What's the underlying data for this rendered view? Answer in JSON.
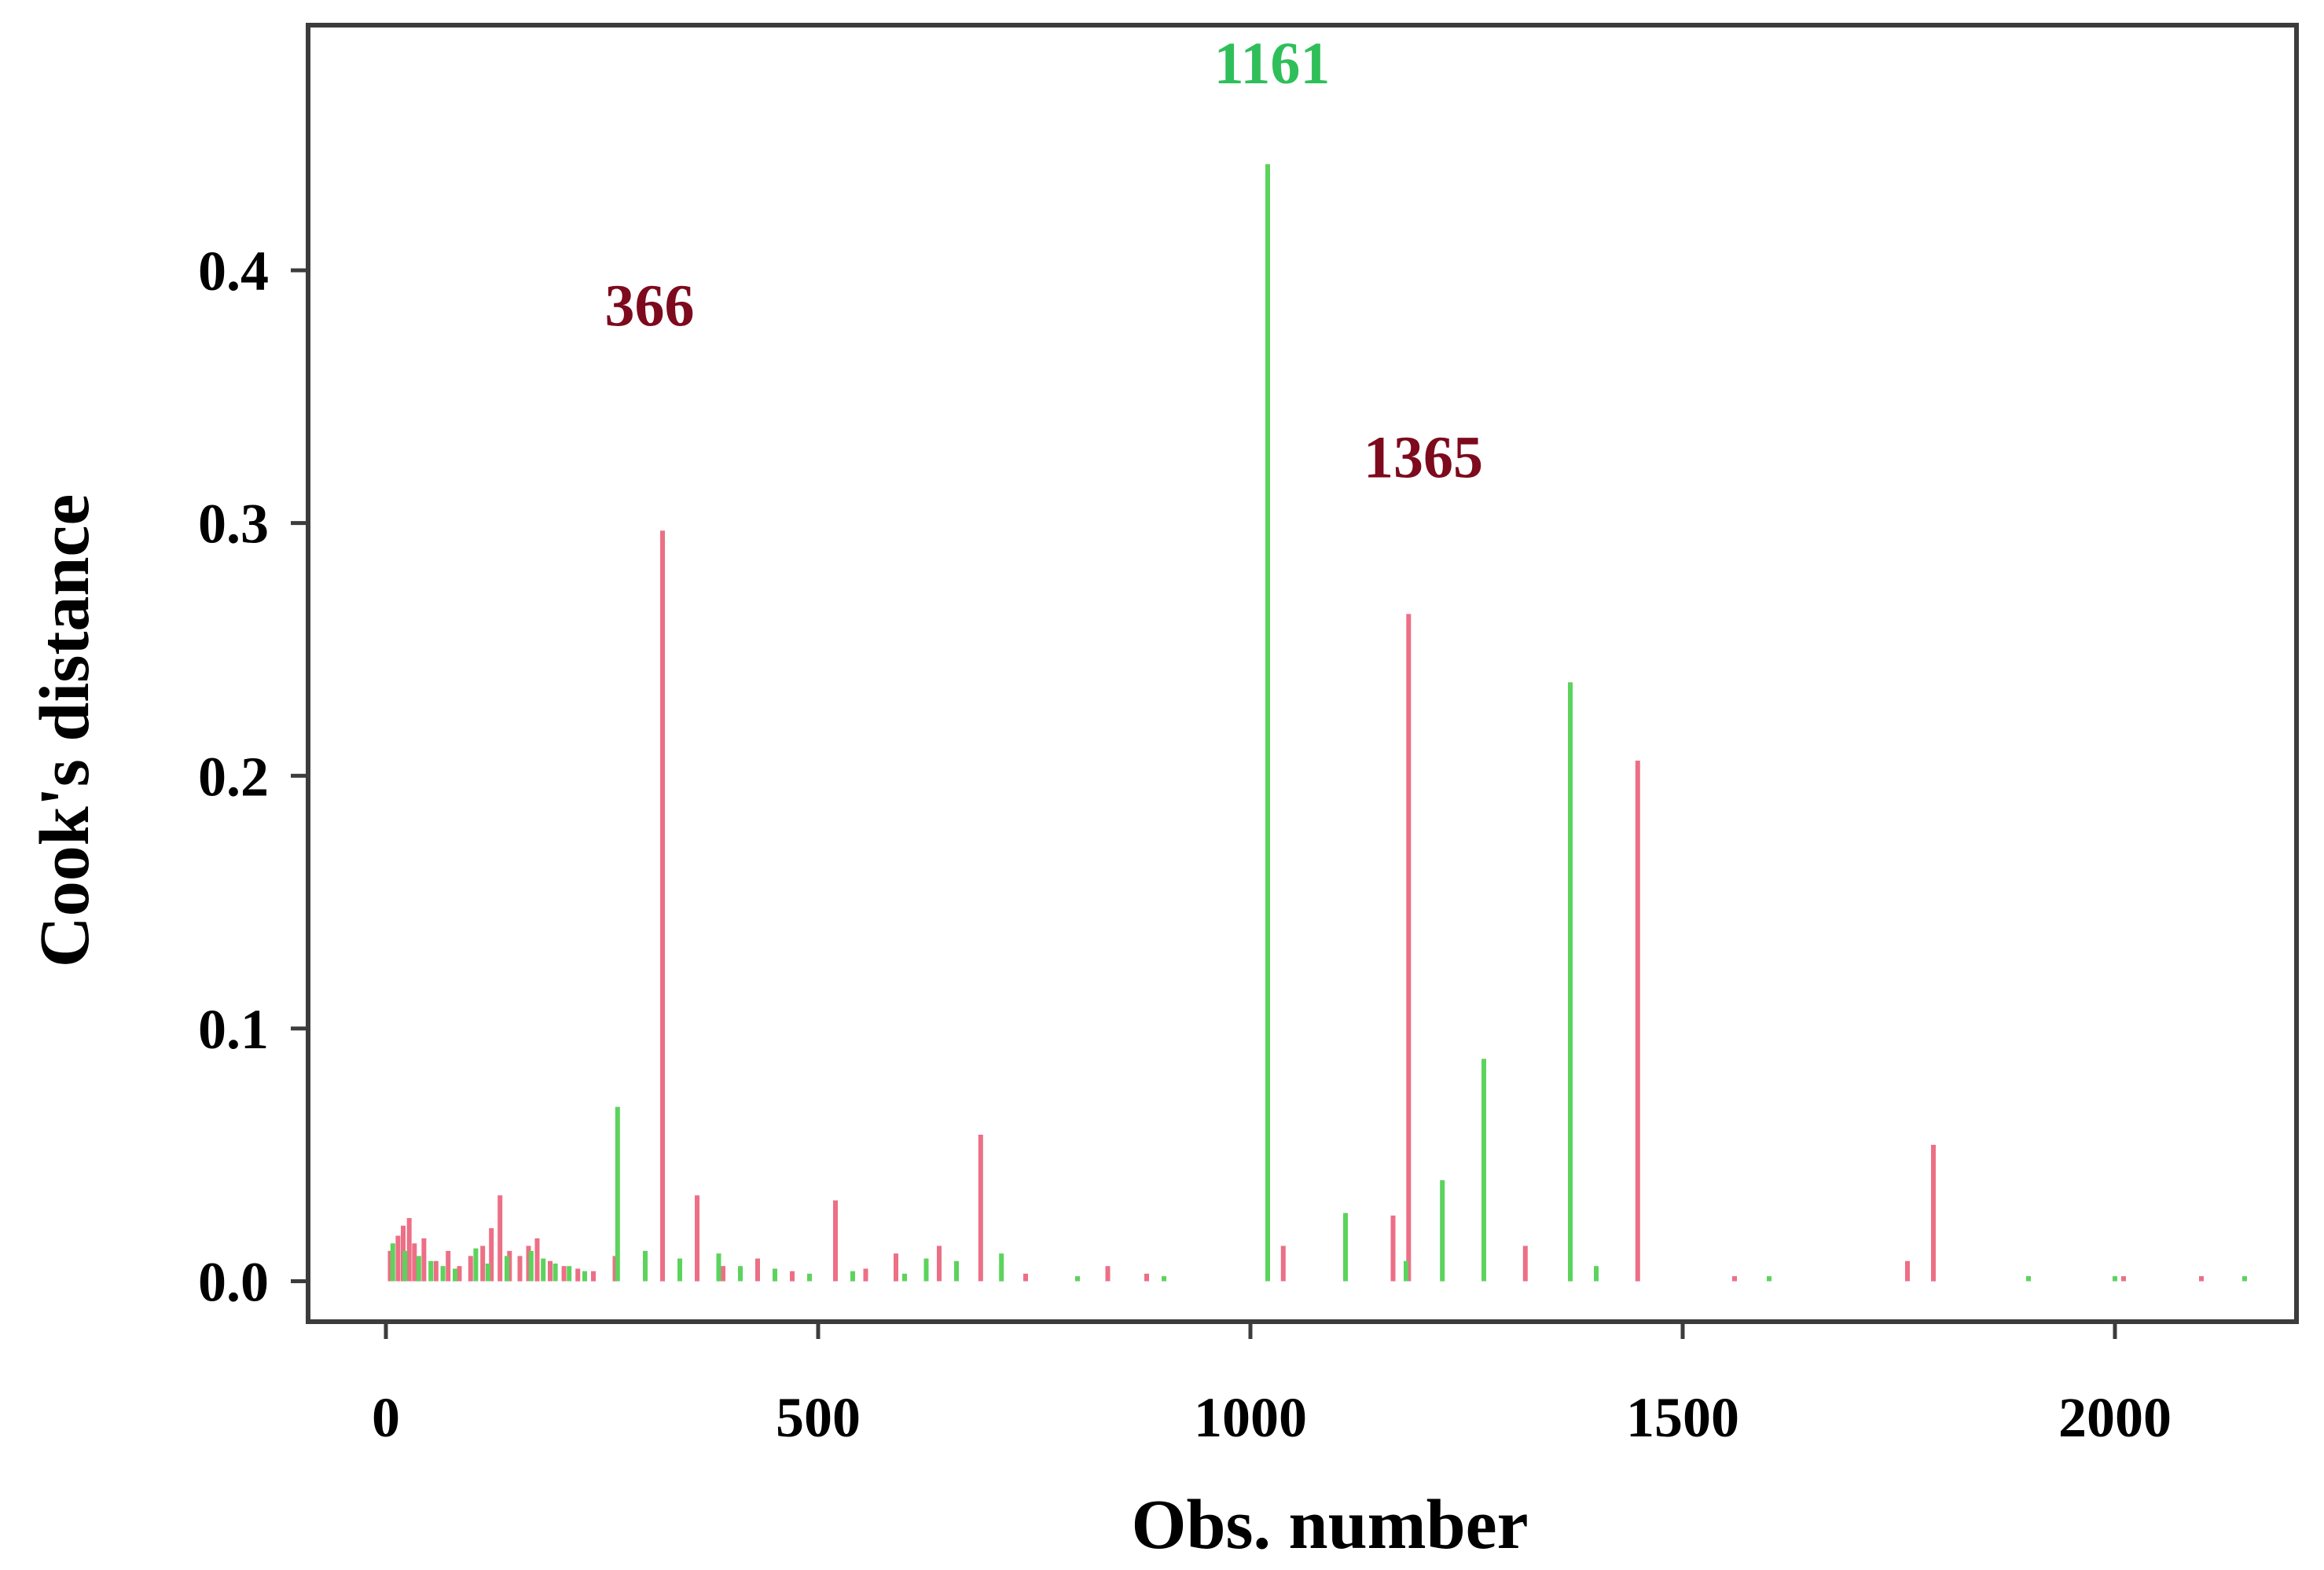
{
  "chart_data": {
    "type": "bar",
    "xlabel": "Obs. number",
    "ylabel": "Cook's distance",
    "xlim": [
      -90,
      2210
    ],
    "ylim": [
      -0.016,
      0.497
    ],
    "x_ticks": [
      0,
      500,
      1000,
      1500,
      2000
    ],
    "y_ticks": [
      0.0,
      0.1,
      0.2,
      0.3,
      0.4
    ],
    "grid": false,
    "colors": {
      "group_a": "#ec6f86",
      "group_b": "#5cd35c",
      "label_a": "#7d0a1d",
      "label_b": "#2fbf5a"
    },
    "series": [
      {
        "color_key": "group_a",
        "x": [
          5,
          14,
          20,
          27,
          33,
          44,
          58,
          72,
          85,
          98,
          112,
          122,
          132,
          143,
          155,
          165,
          175,
          190,
          206,
          222,
          240,
          265,
          320,
          360,
          390,
          430,
          470,
          520,
          555,
          590,
          640,
          688,
          740,
          835,
          880,
          1038,
          1165,
          1183,
          1318,
          1448,
          1560,
          1760,
          1790,
          1900,
          2010,
          2100
        ],
        "values": [
          0.012,
          0.018,
          0.022,
          0.025,
          0.015,
          0.017,
          0.008,
          0.012,
          0.006,
          0.01,
          0.014,
          0.021,
          0.034,
          0.012,
          0.01,
          0.014,
          0.017,
          0.008,
          0.006,
          0.005,
          0.004,
          0.01,
          0.297,
          0.034,
          0.006,
          0.009,
          0.004,
          0.032,
          0.005,
          0.011,
          0.014,
          0.058,
          0.003,
          0.006,
          0.003,
          0.014,
          0.026,
          0.264,
          0.014,
          0.206,
          0.002,
          0.008,
          0.054,
          0.002,
          0.002,
          0.002
        ]
      },
      {
        "color_key": "group_b",
        "x": [
          8,
          22,
          38,
          52,
          66,
          80,
          104,
          118,
          140,
          168,
          182,
          196,
          212,
          230,
          268,
          300,
          340,
          385,
          410,
          450,
          490,
          540,
          600,
          625,
          660,
          712,
          800,
          900,
          1020,
          1110,
          1180,
          1222,
          1270,
          1370,
          1400,
          1600,
          1900,
          2000,
          2150
        ],
        "values": [
          0.015,
          0.012,
          0.01,
          0.008,
          0.006,
          0.005,
          0.013,
          0.007,
          0.01,
          0.012,
          0.009,
          0.007,
          0.006,
          0.004,
          0.069,
          0.012,
          0.009,
          0.011,
          0.006,
          0.005,
          0.003,
          0.004,
          0.003,
          0.009,
          0.008,
          0.011,
          0.002,
          0.002,
          0.442,
          0.027,
          0.008,
          0.04,
          0.088,
          0.237,
          0.006,
          0.002,
          0.002,
          0.002,
          0.002
        ]
      }
    ],
    "annotations": [
      {
        "text": "366",
        "x": 305,
        "y": 0.378,
        "color_key": "label_a"
      },
      {
        "text": "1161",
        "x": 1025,
        "y": 0.474,
        "color_key": "label_b"
      },
      {
        "text": "1365",
        "x": 1200,
        "y": 0.318,
        "color_key": "label_a"
      }
    ]
  }
}
